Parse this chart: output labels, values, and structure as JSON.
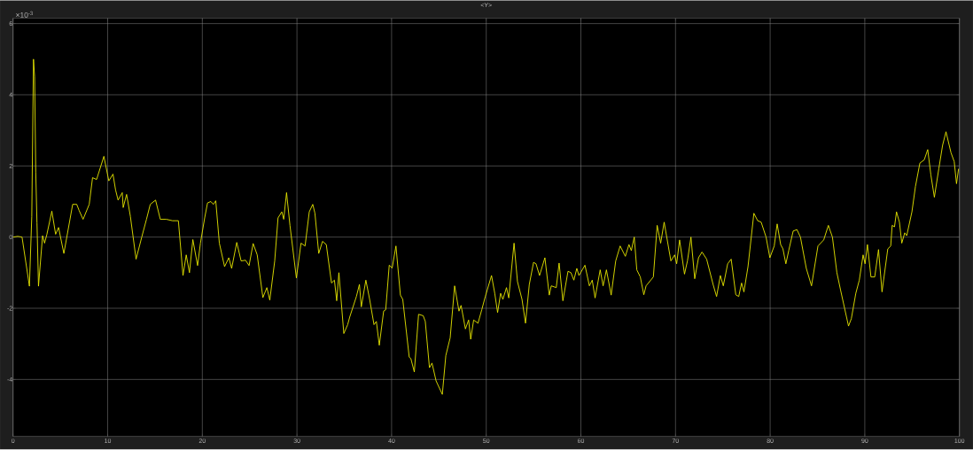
{
  "chart_data": {
    "type": "line",
    "title": "<Y>",
    "annotations": [
      "×10$^{-3}$"
    ],
    "x": [
      0,
      0.5,
      0.95,
      1.73,
      1.98,
      2.16,
      2.28,
      2.4,
      2.53,
      2.69,
      3.12,
      3.33,
      3.58,
      4.1,
      4.5,
      4.81,
      5.37,
      6.3,
      6.73,
      6.98,
      7.4,
      8.05,
      8.4,
      8.83,
      9.6,
      10.12,
      10.56,
      10.83,
      11.1,
      11.54,
      11.64,
      12.0,
      12.4,
      13.0,
      13.6,
      14.1,
      14.5,
      15.06,
      15.56,
      16.2,
      16.85,
      17.47,
      17.96,
      18.3,
      18.64,
      19.0,
      19.5,
      19.8,
      20.25,
      20.55,
      20.9,
      21.17,
      21.42,
      21.8,
      22.35,
      22.8,
      23.1,
      23.64,
      24.1,
      24.57,
      24.94,
      25.37,
      25.8,
      26.4,
      26.82,
      27.13,
      27.65,
      28.0,
      28.4,
      28.6,
      28.9,
      29.26,
      29.94,
      30.43,
      30.86,
      31.3,
      31.67,
      31.9,
      32.3,
      32.7,
      33.1,
      33.65,
      33.96,
      34.2,
      34.43,
      34.95,
      35.36,
      35.57,
      36.28,
      36.6,
      36.8,
      37.28,
      37.68,
      38.14,
      38.39,
      38.7,
      39.16,
      39.38,
      39.75,
      40.06,
      40.46,
      40.93,
      41.18,
      41.86,
      42.04,
      42.4,
      42.85,
      43.34,
      43.56,
      44.0,
      44.27,
      44.7,
      45.36,
      45.73,
      46.19,
      46.66,
      47.12,
      47.34,
      47.8,
      48.14,
      48.36,
      48.67,
      49.13,
      49.53,
      49.9,
      50.56,
      50.9,
      51.2,
      51.52,
      51.76,
      52.14,
      52.38,
      52.94,
      53.3,
      53.78,
      54.15,
      54.55,
      55.0,
      55.26,
      55.63,
      56.2,
      56.66,
      56.87,
      57.4,
      57.7,
      58.1,
      58.64,
      58.95,
      59.26,
      59.57,
      59.8,
      60.43,
      60.9,
      61.2,
      61.5,
      62.04,
      62.35,
      62.7,
      63.2,
      63.68,
      64.15,
      64.7,
      65.08,
      65.33,
      65.64,
      65.91,
      66.28,
      66.65,
      66.89,
      67.66,
      68.06,
      68.43,
      68.8,
      69.51,
      69.91,
      70.12,
      70.43,
      70.95,
      71.26,
      71.63,
      72.03,
      72.43,
      72.8,
      73.29,
      73.97,
      74.34,
      74.74,
      75.05,
      75.51,
      75.88,
      76.37,
      76.68,
      76.98,
      77.23,
      77.66,
      78.28,
      78.68,
      79.05,
      79.57,
      79.97,
      80.43,
      80.74,
      81.11,
      81.35,
      81.66,
      81.97,
      82.43,
      82.83,
      83.2,
      83.82,
      84.37,
      85.05,
      85.66,
      86.15,
      86.58,
      87.05,
      87.45,
      88.28,
      88.58,
      89.05,
      89.42,
      89.82,
      90.03,
      90.28,
      90.65,
      91.05,
      91.45,
      91.82,
      92.43,
      92.74,
      92.89,
      93.14,
      93.35,
      93.66,
      93.91,
      94.22,
      94.43,
      94.98,
      95.35,
      95.82,
      96.28,
      96.65,
      96.98,
      97.35,
      97.82,
      98.22,
      98.58,
      99.11,
      99.45,
      99.69,
      99.91
    ],
    "series": [
      {
        "color": "#e8e800",
        "values": [
          0,
          0.02,
          0,
          -1.38,
          0.58,
          5.0,
          4.5,
          1.83,
          0.4,
          -1.38,
          0.04,
          -0.17,
          0.08,
          0.73,
          0.08,
          0.27,
          -0.46,
          0.92,
          0.92,
          0.75,
          0.5,
          0.92,
          1.67,
          1.62,
          2.27,
          1.58,
          1.77,
          1.33,
          1.04,
          1.25,
          0.83,
          1.2,
          0.58,
          -0.62,
          0,
          0.5,
          0.92,
          1.04,
          0.5,
          0.5,
          0.46,
          0.46,
          -1.08,
          -0.5,
          -1.0,
          -0.07,
          -0.8,
          -0.17,
          0.54,
          0.96,
          1.0,
          0.92,
          1.02,
          -0.17,
          -0.83,
          -0.58,
          -0.88,
          -0.15,
          -0.67,
          -0.65,
          -0.8,
          -0.18,
          -0.5,
          -1.7,
          -1.42,
          -1.77,
          -0.67,
          0.54,
          0.71,
          0.5,
          1.25,
          0.33,
          -1.15,
          -0.17,
          -0.25,
          0.71,
          0.92,
          0.67,
          -0.46,
          -0.12,
          -0.21,
          -1.29,
          -1.21,
          -1.79,
          -1.0,
          -2.71,
          -2.46,
          -2.25,
          -1.67,
          -1.33,
          -1.96,
          -1.21,
          -1.75,
          -2.46,
          -2.37,
          -3.04,
          -2.08,
          -2.04,
          -0.79,
          -0.87,
          -0.25,
          -1.63,
          -1.75,
          -3.37,
          -3.42,
          -3.79,
          -2.17,
          -2.21,
          -2.37,
          -3.67,
          -3.54,
          -4.04,
          -4.42,
          -3.33,
          -2.83,
          -1.37,
          -2.08,
          -1.92,
          -2.58,
          -2.33,
          -2.87,
          -2.33,
          -2.42,
          -2.04,
          -1.67,
          -1.08,
          -1.58,
          -2.12,
          -1.58,
          -1.75,
          -1.42,
          -1.71,
          -0.17,
          -1.25,
          -1.75,
          -2.42,
          -1.33,
          -0.71,
          -0.75,
          -1.08,
          -0.58,
          -1.63,
          -1.37,
          -1.42,
          -0.73,
          -1.79,
          -0.96,
          -1.0,
          -1.21,
          -0.88,
          -1.08,
          -0.79,
          -1.37,
          -1.21,
          -1.71,
          -0.92,
          -1.37,
          -0.92,
          -1.63,
          -0.67,
          -0.25,
          -0.54,
          -0.21,
          -0.38,
          0,
          -0.92,
          -1.12,
          -1.62,
          -1.37,
          -1.12,
          0.33,
          -0.17,
          0.42,
          -0.67,
          -0.5,
          -0.75,
          -0.08,
          -1.04,
          -0.67,
          0,
          -1.17,
          -0.58,
          -0.42,
          -0.62,
          -1.33,
          -1.67,
          -1.08,
          -1.37,
          -0.75,
          -0.62,
          -1.62,
          -1.67,
          -1.29,
          -1.54,
          -0.83,
          0.67,
          0.46,
          0.42,
          0,
          -0.58,
          -0.25,
          0.37,
          -0.21,
          -0.33,
          -0.75,
          -0.37,
          0.17,
          0.21,
          0,
          -0.88,
          -1.37,
          -0.25,
          -0.08,
          0.33,
          0,
          -1.0,
          -1.5,
          -2.5,
          -2.29,
          -1.58,
          -1.21,
          -0.5,
          -0.75,
          -0.21,
          -1.12,
          -1.12,
          -0.35,
          -1.54,
          -0.33,
          -0.25,
          0.33,
          0.29,
          0.71,
          0.42,
          -0.17,
          0.12,
          0.04,
          0.71,
          1.42,
          2.08,
          2.17,
          2.46,
          1.75,
          1.12,
          1.92,
          2.58,
          2.96,
          2.37,
          2.12,
          1.5,
          1.92
        ]
      }
    ],
    "xlim": [
      0,
      100
    ],
    "ylim": [
      -5.6,
      6.15
    ],
    "xticks": [
      0,
      10,
      20,
      30,
      40,
      50,
      60,
      70,
      80,
      90,
      100
    ],
    "yticks": [
      -4,
      -2,
      0,
      2,
      4,
      6
    ],
    "grid": true,
    "line_style": "solid"
  }
}
